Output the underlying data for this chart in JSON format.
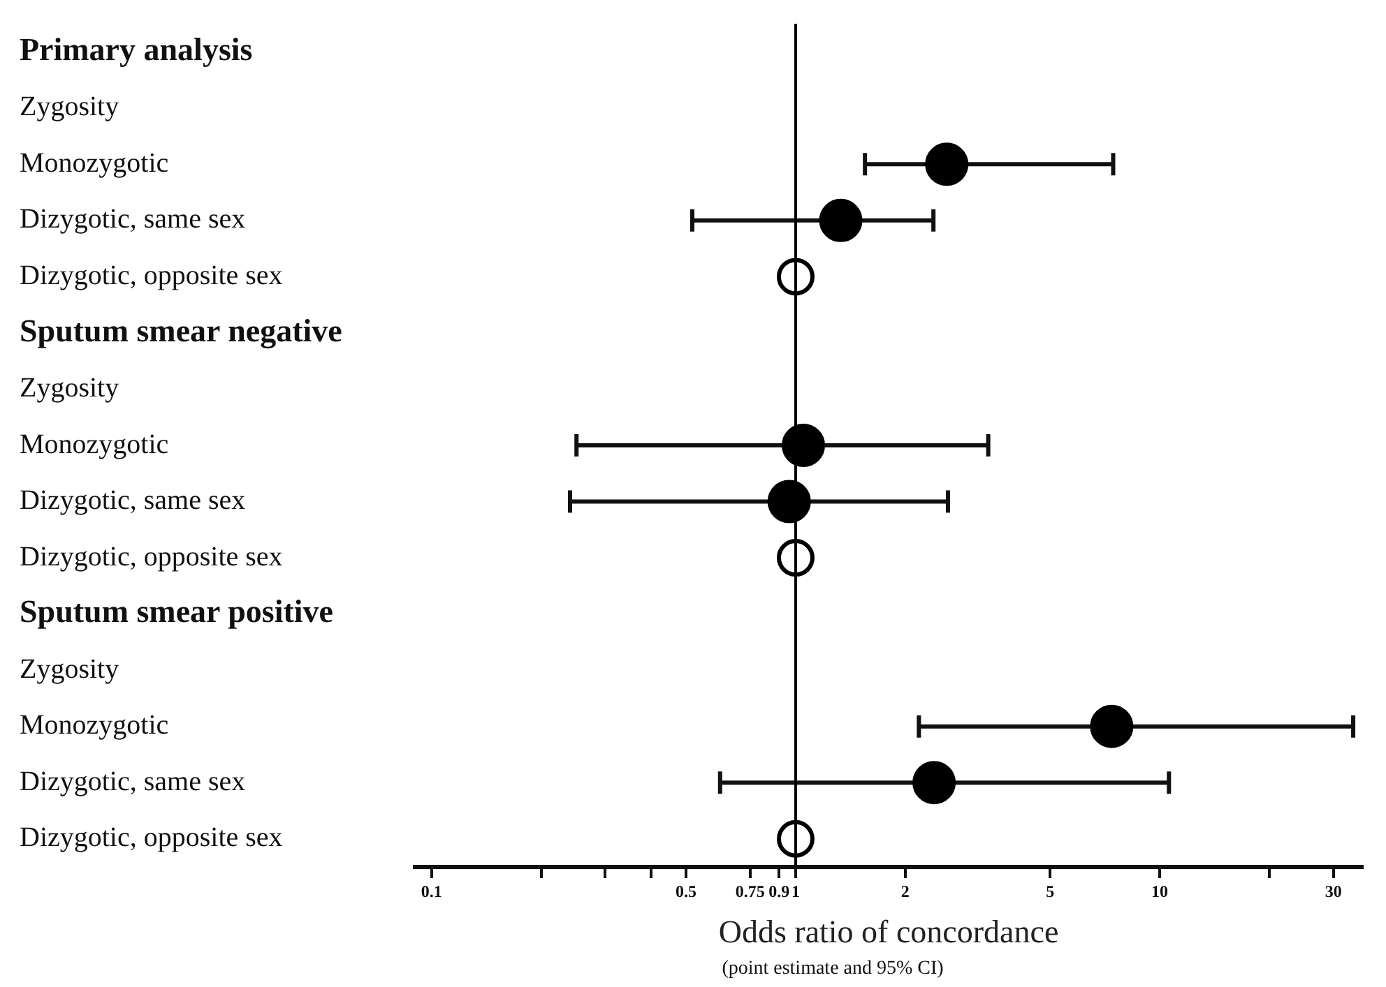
{
  "chart_data": {
    "type": "scatter",
    "orientation": "horizontal",
    "xlabel": "Odds ratio of concordance",
    "annotations": [
      "(point estimate and 95% CI)"
    ],
    "categories": [
      "Primary analysis",
      "Zygosity",
      "Monozygotic",
      "Dizygotic, same sex",
      "Dizygotic, opposite sex",
      "Sputum smear negative",
      "Zygosity",
      "Monozygotic",
      "Dizygotic, same sex",
      "Dizygotic, opposite sex",
      "Sputum smear positive",
      "Zygosity",
      "Monozygotic",
      "Dizygotic, same sex",
      "Dizygotic, opposite sex"
    ],
    "values": [
      null,
      null,
      2.6,
      1.33,
      1,
      null,
      null,
      1.05,
      0.96,
      1,
      null,
      null,
      7.38,
      2.4,
      1
    ],
    "errors": [
      null,
      null,
      [
        1.55,
        7.45
      ],
      [
        0.52,
        2.39
      ],
      null,
      null,
      null,
      [
        0.25,
        3.38
      ],
      [
        0.24,
        2.62
      ],
      null,
      null,
      null,
      [
        2.18,
        34
      ],
      [
        0.62,
        10.6
      ],
      null
    ],
    "colors": [
      null,
      null,
      "#000000",
      "#000000",
      "#ffffff",
      null,
      null,
      "#000000",
      "#000000",
      "#ffffff",
      null,
      null,
      "#000000",
      "#000000",
      "#ffffff"
    ],
    "marker": "circle",
    "log": "x",
    "xlim": [
      0.09,
      36
    ],
    "xticks": [
      0.1,
      {
        "value": 0.2,
        "label": null
      },
      {
        "value": 0.3,
        "label": null
      },
      {
        "value": 0.4,
        "label": null
      },
      0.5,
      0.75,
      0.9,
      1,
      2,
      5,
      10,
      {
        "value": 20,
        "label": null
      },
      30
    ],
    "ref_lines": [
      {
        "axis": "x",
        "value": 1
      }
    ]
  }
}
